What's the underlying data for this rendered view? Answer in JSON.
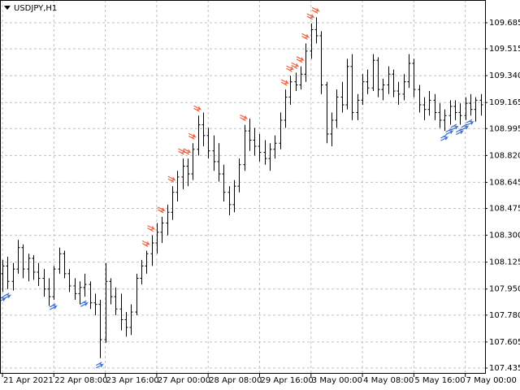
{
  "chart_data": {
    "type": "ohlc",
    "title": "USDJPY,H1",
    "color": "#000000",
    "grid": true,
    "ylim": [
      107.398,
      109.833
    ],
    "yticks": [
      109.685,
      109.515,
      {
        "value": 109.34,
        "label": "109.340"
      },
      109.165,
      108.995,
      {
        "value": 108.82,
        "label": "108.820"
      },
      108.645,
      108.475,
      {
        "value": 108.3,
        "label": "108.300"
      },
      108.125,
      {
        "value": 107.95,
        "label": "107.950"
      },
      {
        "value": 107.78,
        "label": "107.780"
      },
      107.605,
      107.435
    ],
    "categories": [
      "21 Apr 2021",
      null,
      null,
      null,
      null,
      null,
      null,
      null,
      null,
      null,
      "22 Apr 08:00",
      null,
      null,
      null,
      null,
      null,
      null,
      null,
      null,
      null,
      "23 Apr 16:00",
      null,
      null,
      null,
      null,
      null,
      null,
      null,
      null,
      null,
      "27 Apr 00:00",
      null,
      null,
      null,
      null,
      null,
      null,
      null,
      null,
      null,
      "28 Apr 08:00",
      null,
      null,
      null,
      null,
      null,
      null,
      null,
      null,
      null,
      "29 Apr 16:00",
      null,
      null,
      null,
      null,
      null,
      null,
      null,
      null,
      null,
      "3 May 00:00",
      null,
      null,
      null,
      null,
      null,
      null,
      null,
      null,
      null,
      "4 May 08:00",
      null,
      null,
      null,
      null,
      null,
      null,
      null,
      null,
      null,
      "5 May 16:00",
      null,
      null,
      null,
      null,
      null,
      null,
      null,
      null,
      null,
      "7 May 00:00",
      null,
      null,
      null
    ],
    "ohlc": [
      [
        108.05,
        108.14,
        107.93,
        108.1
      ],
      [
        108.1,
        108.16,
        107.95,
        108.0
      ],
      [
        108.0,
        108.12,
        107.94,
        108.08
      ],
      [
        108.08,
        108.27,
        108.05,
        108.22
      ],
      [
        108.22,
        108.24,
        108.02,
        108.08
      ],
      [
        108.08,
        108.18,
        108.0,
        108.15
      ],
      [
        108.15,
        108.17,
        108.01,
        108.06
      ],
      [
        108.06,
        108.12,
        107.97,
        108.02
      ],
      [
        108.02,
        108.08,
        107.9,
        107.95
      ],
      [
        107.95,
        108.02,
        107.84,
        107.9
      ],
      [
        107.9,
        108.1,
        107.88,
        108.08
      ],
      [
        108.08,
        108.22,
        108.05,
        108.18
      ],
      [
        108.18,
        108.2,
        108.02,
        108.05
      ],
      [
        108.05,
        108.08,
        107.93,
        107.97
      ],
      [
        107.97,
        108.02,
        107.88,
        107.92
      ],
      [
        107.92,
        108.0,
        107.85,
        107.96
      ],
      [
        107.96,
        108.05,
        107.9,
        107.98
      ],
      [
        107.98,
        108.0,
        107.82,
        107.86
      ],
      [
        107.86,
        107.92,
        107.78,
        107.85
      ],
      [
        107.85,
        107.88,
        107.5,
        107.62
      ],
      [
        107.62,
        108.12,
        107.6,
        108.0
      ],
      [
        108.0,
        108.02,
        107.85,
        107.9
      ],
      [
        107.9,
        107.96,
        107.78,
        107.82
      ],
      [
        107.82,
        107.92,
        107.68,
        107.75
      ],
      [
        107.75,
        107.8,
        107.64,
        107.7
      ],
      [
        107.7,
        107.85,
        107.65,
        107.8
      ],
      [
        107.8,
        108.05,
        107.78,
        108.02
      ],
      [
        108.02,
        108.14,
        107.98,
        108.1
      ],
      [
        108.1,
        108.2,
        108.05,
        108.18
      ],
      [
        108.18,
        108.3,
        108.1,
        108.25
      ],
      [
        108.25,
        108.38,
        108.18,
        108.32
      ],
      [
        108.32,
        108.42,
        108.25,
        108.38
      ],
      [
        108.38,
        108.5,
        108.3,
        108.45
      ],
      [
        108.45,
        108.62,
        108.4,
        108.58
      ],
      [
        108.58,
        108.72,
        108.52,
        108.68
      ],
      [
        108.68,
        108.8,
        108.6,
        108.75
      ],
      [
        108.75,
        108.8,
        108.62,
        108.7
      ],
      [
        108.7,
        108.9,
        108.66,
        108.86
      ],
      [
        108.86,
        109.08,
        108.82,
        109.02
      ],
      [
        109.02,
        109.1,
        108.88,
        108.95
      ],
      [
        108.95,
        109.0,
        108.8,
        108.85
      ],
      [
        108.85,
        108.95,
        108.72,
        108.78
      ],
      [
        108.78,
        108.9,
        108.65,
        108.7
      ],
      [
        108.7,
        108.76,
        108.52,
        108.58
      ],
      [
        108.58,
        108.62,
        108.43,
        108.5
      ],
      [
        108.5,
        108.66,
        108.45,
        108.62
      ],
      [
        108.62,
        108.8,
        108.58,
        108.76
      ],
      [
        108.76,
        109.02,
        108.72,
        108.98
      ],
      [
        108.98,
        109.06,
        108.85,
        108.92
      ],
      [
        108.92,
        109.0,
        108.82,
        108.88
      ],
      [
        108.88,
        108.96,
        108.78,
        108.84
      ],
      [
        108.84,
        108.92,
        108.76,
        108.8
      ],
      [
        108.8,
        108.9,
        108.72,
        108.86
      ],
      [
        108.86,
        108.95,
        108.8,
        108.9
      ],
      [
        108.9,
        109.1,
        108.86,
        109.05
      ],
      [
        109.05,
        109.25,
        109.0,
        109.2
      ],
      [
        109.2,
        109.34,
        109.15,
        109.3
      ],
      [
        109.3,
        109.36,
        109.24,
        109.28
      ],
      [
        109.28,
        109.4,
        109.25,
        109.35
      ],
      [
        109.35,
        109.55,
        109.3,
        109.5
      ],
      [
        109.5,
        109.68,
        109.45,
        109.64
      ],
      [
        109.64,
        109.72,
        109.55,
        109.6
      ],
      [
        109.6,
        109.63,
        109.22,
        109.28
      ],
      [
        109.28,
        109.3,
        108.9,
        108.96
      ],
      [
        108.96,
        109.1,
        108.88,
        109.05
      ],
      [
        109.05,
        109.25,
        109.0,
        109.2
      ],
      [
        109.2,
        109.3,
        109.1,
        109.15
      ],
      [
        109.15,
        109.45,
        109.12,
        109.4
      ],
      [
        109.4,
        109.48,
        109.05,
        109.1
      ],
      [
        109.1,
        109.22,
        109.05,
        109.18
      ],
      [
        109.18,
        109.35,
        109.15,
        109.3
      ],
      [
        109.3,
        109.38,
        109.22,
        109.26
      ],
      [
        109.26,
        109.48,
        109.24,
        109.44
      ],
      [
        109.44,
        109.46,
        109.2,
        109.25
      ],
      [
        109.25,
        109.32,
        109.18,
        109.28
      ],
      [
        109.28,
        109.4,
        109.22,
        109.35
      ],
      [
        109.35,
        109.38,
        109.2,
        109.24
      ],
      [
        109.24,
        109.3,
        109.15,
        109.22
      ],
      [
        109.22,
        109.35,
        109.18,
        109.3
      ],
      [
        109.3,
        109.48,
        109.26,
        109.42
      ],
      [
        109.42,
        109.45,
        109.2,
        109.25
      ],
      [
        109.25,
        109.28,
        109.1,
        109.15
      ],
      [
        109.15,
        109.2,
        109.05,
        109.12
      ],
      [
        109.12,
        109.24,
        109.08,
        109.18
      ],
      [
        109.18,
        109.22,
        109.05,
        109.1
      ],
      [
        109.1,
        109.16,
        109.0,
        109.05
      ],
      [
        109.05,
        109.12,
        108.98,
        109.08
      ],
      [
        109.08,
        109.18,
        109.02,
        109.14
      ],
      [
        109.14,
        109.18,
        109.05,
        109.1
      ],
      [
        109.1,
        109.16,
        109.02,
        109.08
      ],
      [
        109.08,
        109.2,
        109.05,
        109.16
      ],
      [
        109.16,
        109.22,
        109.08,
        109.12
      ],
      [
        109.12,
        109.2,
        109.04,
        109.18
      ],
      [
        109.18,
        109.22,
        109.08,
        109.15
      ]
    ],
    "sell_signals": {
      "color": "#f0603c",
      "values": [
        null,
        null,
        null,
        null,
        null,
        null,
        null,
        null,
        null,
        null,
        null,
        null,
        null,
        null,
        null,
        null,
        null,
        null,
        null,
        null,
        null,
        null,
        null,
        null,
        null,
        null,
        null,
        null,
        108.2,
        108.3,
        null,
        108.42,
        null,
        108.62,
        null,
        108.8,
        108.8,
        108.9,
        109.08,
        null,
        null,
        null,
        null,
        null,
        null,
        null,
        null,
        109.02,
        null,
        null,
        null,
        null,
        null,
        null,
        null,
        109.25,
        109.34,
        109.36,
        109.4,
        109.55,
        109.68,
        109.72,
        null,
        null,
        null,
        null,
        null,
        null,
        null,
        null,
        null,
        null,
        null,
        null,
        null,
        null,
        null,
        null,
        null,
        null,
        null,
        null,
        null,
        null,
        null,
        null,
        null,
        null,
        null,
        null,
        null,
        null,
        null,
        null
      ]
    },
    "buy_signals": {
      "color": "#3c6ed2",
      "values": [
        107.93,
        107.95,
        null,
        null,
        null,
        null,
        null,
        null,
        null,
        null,
        107.88,
        null,
        null,
        null,
        null,
        null,
        107.9,
        null,
        null,
        107.5,
        null,
        null,
        null,
        null,
        null,
        null,
        null,
        null,
        null,
        null,
        null,
        null,
        null,
        null,
        null,
        null,
        null,
        null,
        null,
        null,
        null,
        null,
        null,
        null,
        null,
        null,
        null,
        null,
        null,
        null,
        null,
        null,
        null,
        null,
        null,
        null,
        null,
        null,
        null,
        null,
        null,
        null,
        null,
        null,
        null,
        null,
        null,
        null,
        null,
        null,
        null,
        null,
        null,
        null,
        null,
        null,
        null,
        null,
        null,
        null,
        null,
        null,
        null,
        null,
        null,
        null,
        108.98,
        109.02,
        109.05,
        109.02,
        109.05,
        109.08,
        null,
        null
      ]
    }
  }
}
